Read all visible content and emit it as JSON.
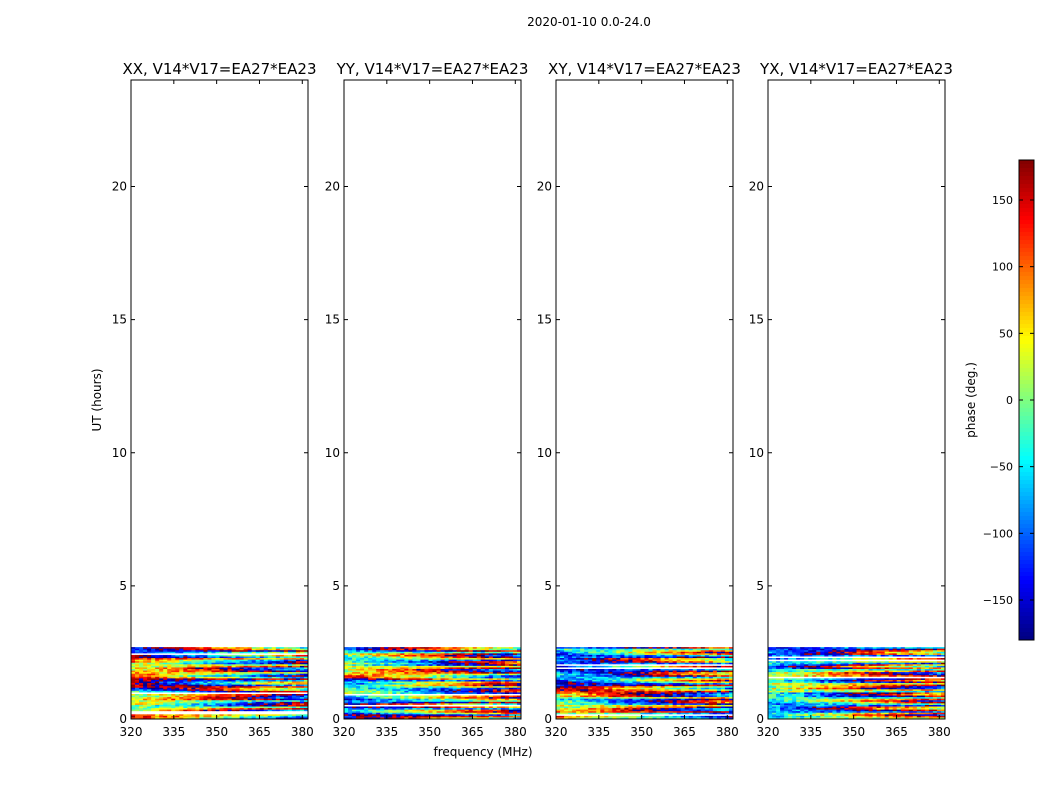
{
  "suptitle": "2020-01-10 0.0-24.0",
  "chart_data": {
    "type": "heatmap",
    "xlabel": "frequency (MHz)",
    "ylabel": "UT (hours)",
    "xlim": [
      320,
      382
    ],
    "ylim": [
      0,
      24
    ],
    "x_ticks": [
      "320",
      "335",
      "350",
      "365",
      "380"
    ],
    "y_ticks": [
      "0",
      "5",
      "10",
      "15",
      "20"
    ],
    "data_extent_hours": [
      0,
      2.7
    ],
    "colormap": "jet",
    "colorbar": {
      "label": "phase (deg.)",
      "range": [
        -180,
        180
      ],
      "ticks": [
        "150",
        "100",
        "50",
        "0",
        "−50",
        "−100",
        "−150"
      ]
    },
    "panels": [
      {
        "title": "XX, V14*V17=EA27*EA23",
        "seed": 11
      },
      {
        "title": "YY, V14*V17=EA27*EA23",
        "seed": 23
      },
      {
        "title": "XY, V14*V17=EA27*EA23",
        "seed": 37
      },
      {
        "title": "YX, V14*V17=EA27*EA23",
        "seed": 53
      }
    ]
  }
}
